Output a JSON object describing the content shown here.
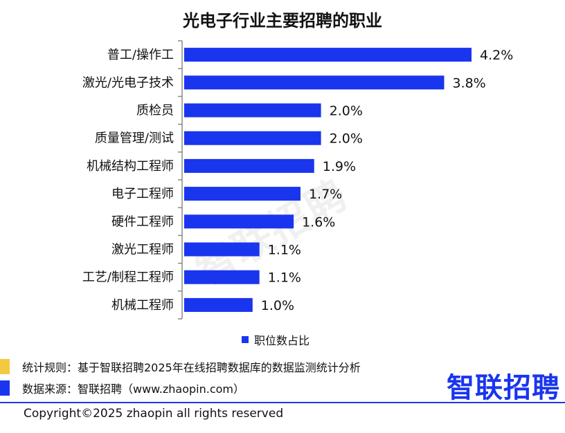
{
  "title": "光电子行业主要招聘的职业",
  "watermark": "智联招聘",
  "legend_label": "职位数占比",
  "notes": {
    "rule": "统计规则：基于智联招聘2025年在线招聘数据库的数据监测统计分析",
    "source": "数据来源：智联招聘（www.zhaopin.com）"
  },
  "logo": "智联招聘",
  "copyright": "Copyright©2025 zhaopin all rights reserved",
  "colors": {
    "bar": "#1a35ee",
    "accent_yellow": "#f5c842",
    "accent_blue": "#1a35ee",
    "axis": "#888888"
  },
  "chart_data": {
    "type": "bar",
    "orientation": "horizontal",
    "title": "光电子行业主要招聘的职业",
    "categories": [
      "普工/操作工",
      "激光/光电子技术",
      "质检员",
      "质量管理/测试",
      "机械结构工程师",
      "电子工程师",
      "硬件工程师",
      "激光工程师",
      "工艺/制程工程师",
      "机械工程师"
    ],
    "series": [
      {
        "name": "职位数占比",
        "values": [
          4.2,
          3.8,
          2.0,
          2.0,
          1.9,
          1.7,
          1.6,
          1.1,
          1.1,
          1.0
        ]
      }
    ],
    "data_labels": [
      "4.2%",
      "3.8%",
      "2.0%",
      "2.0%",
      "1.9%",
      "1.7%",
      "1.6%",
      "1.1%",
      "1.1%",
      "1.0%"
    ],
    "legend": "bottom",
    "grid": false
  }
}
